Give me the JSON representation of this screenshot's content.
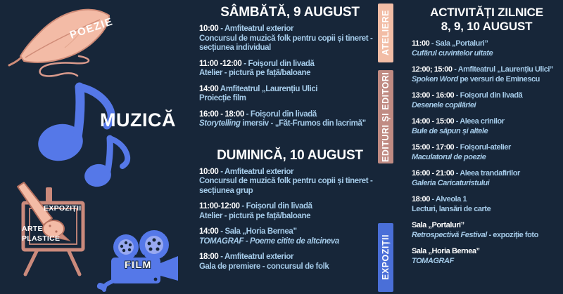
{
  "colors": {
    "background": "#172639",
    "body_text_blue": "#a5cbe9",
    "white": "#ffffff",
    "accent_blue": "#5578e8",
    "salmon": "#f3bba6",
    "rose_outline": "#cb8a7c",
    "label_ateliere_bg": "#f2bda6",
    "label_edituri_bg": "#c08b83",
    "label_expozitii_bg": "#4a6fd8"
  },
  "decor": {
    "poezie": "POEZIE",
    "muzica": "MUZICĂ",
    "easel_line1": "EXPOZIȚII",
    "easel_line2": "ARTE",
    "easel_line3": "PLASTICE",
    "film": "FILM"
  },
  "side_labels": [
    {
      "label": "ATELIERE"
    },
    {
      "label": "EDITURI ȘI EDITORI"
    },
    {
      "label": "EXPOZIȚII"
    }
  ],
  "saturday": {
    "title": "SÂMBĂTĂ, 9 AUGUST",
    "items": [
      {
        "time": "10:00",
        "sep": " - ",
        "place": "Amfiteatrul exterior",
        "desc": [
          {
            "t": "Concursul de muzică folk pentru copii și tineret - secțiunea individual",
            "i": false
          }
        ]
      },
      {
        "time": "11:00 -12:00",
        "sep": " - ",
        "place": "Foișorul din livadă",
        "desc": [
          {
            "t": "Atelier - pictură pe față/baloane",
            "i": false
          }
        ]
      },
      {
        "time": "14:00",
        "sep": " ",
        "place": "Amfiteatrul „Laurențiu Ulici",
        "desc": [
          {
            "t": "Proiecție film",
            "i": false
          }
        ]
      },
      {
        "time": "16:00 - 18:00",
        "sep": " - ",
        "place": "Foișorul din livadă",
        "desc": [
          {
            "t": "Storytelling",
            "i": true
          },
          {
            "t": " imersiv - „Făt-Frumos din lacrimă”",
            "i": false
          }
        ]
      }
    ]
  },
  "sunday": {
    "title": "DUMINICĂ, 10 AUGUST",
    "items": [
      {
        "time": "10:00",
        "sep": " - ",
        "place": "Amfiteatrul exterior",
        "desc": [
          {
            "t": "Concursul de muzică folk pentru copii și tineret - secțiunea grup",
            "i": false
          }
        ]
      },
      {
        "time": "11:00-12:00",
        "sep": " - ",
        "place": "Foișorul din livadă",
        "desc": [
          {
            "t": "Atelier - pictură pe față/baloane",
            "i": false
          }
        ]
      },
      {
        "time": "14:00",
        "sep": " - ",
        "place": "Sala „Horia Bernea”",
        "desc": [
          {
            "t": "TOMAGRAF - Poeme citite de altcineva",
            "i": true
          }
        ]
      },
      {
        "time": "18:00",
        "sep": " - ",
        "place": "Amfiteatrul exterior",
        "desc": [
          {
            "t": "Gala de premiere - concursul de folk",
            "i": false
          }
        ]
      }
    ]
  },
  "daily": {
    "title_line1": "ACTIVITĂȚI ZILNICE",
    "title_line2": "8, 9, 10 AUGUST",
    "items": [
      {
        "time": "11:00",
        "sep": " - ",
        "place": "Sala „Portaluri”",
        "desc": [
          {
            "t": "Cufărul cuvintelor uitate",
            "i": true
          }
        ]
      },
      {
        "time": "12:00; 15:00",
        "sep": " - ",
        "place": "Amfiteatrul „Laurențiu Ulici”",
        "desc": [
          {
            "t": "Spoken Word",
            "i": true
          },
          {
            "t": " pe versuri de Eminescu",
            "i": false
          }
        ]
      },
      {
        "time": "13:00 - 16:00",
        "sep": " - ",
        "place": "Foișorul din livadă",
        "desc": [
          {
            "t": "Desenele copilăriei",
            "i": true
          }
        ]
      },
      {
        "time": "14:00 - 15:00",
        "sep": " - ",
        "place": "Aleea crinilor",
        "desc": [
          {
            "t": "Bule de săpun și altele",
            "i": true
          }
        ]
      },
      {
        "time": "15:00 - 17:00",
        "sep": " - ",
        "place": "Foișorul-atelier",
        "desc": [
          {
            "t": "Maculatorul de poezie",
            "i": true
          }
        ]
      },
      {
        "time": "16:00 - 21:00",
        "sep": " - ",
        "place": "Aleea trandafirilor",
        "desc": [
          {
            "t": "Galeria Caricaturistului",
            "i": true
          }
        ]
      },
      {
        "time": "18:00",
        "sep": " - ",
        "place": "Alveola 1",
        "desc": [
          {
            "t": "Lecturi, lansări de carte",
            "i": false
          }
        ]
      },
      {
        "time": "Sala „Portaluri”",
        "sep": "",
        "place": "",
        "desc": [
          {
            "t": "Retrospectivă Festival",
            "i": true
          },
          {
            "t": " - expoziție foto",
            "i": false
          }
        ],
        "extra_gap": true
      },
      {
        "time": "Sala „Horia Bernea”",
        "sep": "",
        "place": "",
        "desc": [
          {
            "t": "TOMAGRAF",
            "i": true
          }
        ],
        "extra_gap": true
      }
    ]
  }
}
